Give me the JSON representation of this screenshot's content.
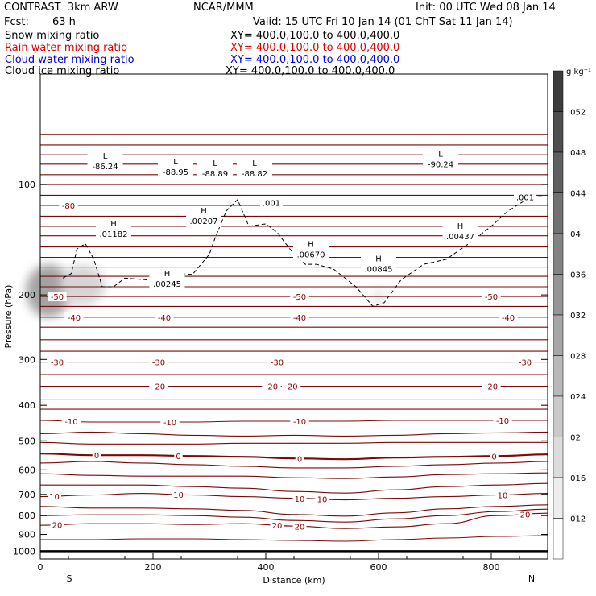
{
  "header": {
    "model": "CONTRAST  3km ARW",
    "org": "NCAR/MMM",
    "init": "Init: 00 UTC Wed 08 Jan 14",
    "fcst_label": "Fcst:",
    "fcst_value": "63 h",
    "valid": "Valid: 15 UTC Fri 10 Jan 14 (01 ChT Sat 11 Jan 14)"
  },
  "legend": [
    {
      "name": "Snow mixing ratio",
      "xy": "XY= 400.0,100.0 to 400.0,400.0",
      "color": "#000000"
    },
    {
      "name": "Rain water mixing ratio",
      "xy": "XY= 400.0,100.0 to 400.0,400.0",
      "color": "#e00000"
    },
    {
      "name": "Cloud water mixing ratio",
      "xy": "XY= 400.0,100.0 to 400.0,400.0",
      "color": "#0000e0"
    },
    {
      "name": "Cloud ice mixing ratio",
      "xy": "XY= 400.0,100.0 to 400.0,400.0",
      "color": "#000000"
    }
  ],
  "chart_data": {
    "type": "contour",
    "xlabel": "Distance (km)",
    "ylabel": "Pressure (hPa)",
    "xlim": [
      0,
      900
    ],
    "ylim": [
      1050,
      50
    ],
    "y_scale": "log",
    "x_ticks": [
      0,
      200,
      400,
      600,
      800
    ],
    "y_ticks": [
      100,
      200,
      300,
      400,
      500,
      600,
      700,
      800,
      900,
      1000
    ],
    "end_labels": {
      "left": "S",
      "right": "N"
    },
    "ground_level_hpa": 1005,
    "colorbar": {
      "units": "g kg⁻¹",
      "ticks": [
        ".052",
        ".048",
        ".044",
        ".04",
        ".036",
        ".032",
        ".028",
        ".024",
        ".02",
        ".016",
        ".012"
      ],
      "values": [
        0.052,
        0.048,
        0.044,
        0.04,
        0.036,
        0.032,
        0.028,
        0.024,
        0.02,
        0.016,
        0.012
      ]
    },
    "temperature_contours": [
      {
        "p": 1000,
        "value": null,
        "dp": [
          0,
          0,
          0,
          0,
          0,
          0,
          0,
          0,
          0,
          0,
          0
        ]
      },
      {
        "p": 930,
        "value": null,
        "dp": [
          0,
          0,
          1,
          1,
          0,
          -1,
          -2,
          0,
          2,
          4,
          5
        ]
      },
      {
        "p": 850,
        "value": 20,
        "labels": [
          {
            "x": 30,
            "text": "20"
          },
          {
            "x": 420,
            "text": "20"
          },
          {
            "x": 460,
            "text": "20"
          },
          {
            "x": 860,
            "text": "20"
          }
        ],
        "dp": [
          0,
          2,
          2,
          1,
          2,
          -1,
          -4,
          -2,
          2,
          12,
          15
        ]
      },
      {
        "p": 800,
        "value": null,
        "dp": [
          0,
          1,
          1,
          0,
          -2,
          -6,
          -8,
          -4,
          0,
          5,
          8
        ]
      },
      {
        "p": 755,
        "value": null,
        "dp": [
          0,
          -2,
          -2,
          -3,
          -5,
          -10,
          -12,
          -8,
          -3,
          0,
          2
        ]
      },
      {
        "p": 710,
        "value": 10,
        "labels": [
          {
            "x": 25,
            "text": "10"
          },
          {
            "x": 245,
            "text": "10"
          },
          {
            "x": 460,
            "text": "10"
          },
          {
            "x": 500,
            "text": "10"
          },
          {
            "x": 820,
            "text": "10"
          }
        ],
        "dp": [
          0,
          2,
          4,
          2,
          0,
          -2,
          -4,
          -2,
          0,
          2,
          4
        ]
      },
      {
        "p": 660,
        "value": null,
        "dp": [
          0,
          0,
          0,
          -2,
          -4,
          -8,
          -10,
          -6,
          -2,
          0,
          2
        ]
      },
      {
        "p": 615,
        "value": null,
        "dp": [
          0,
          -2,
          -3,
          -3,
          -3,
          -5,
          -6,
          -4,
          -1,
          0,
          1
        ]
      },
      {
        "p": 575,
        "value": null,
        "dp": [
          0,
          2,
          0,
          -2,
          -4,
          -6,
          -6,
          -4,
          -2,
          0,
          2
        ]
      },
      {
        "p": 542,
        "value": 0,
        "labels": [
          {
            "x": 100,
            "text": "0"
          },
          {
            "x": 245,
            "text": "0"
          },
          {
            "x": 460,
            "text": "0"
          },
          {
            "x": 805,
            "text": "0"
          }
        ],
        "dp": [
          0,
          -2,
          -2,
          -3,
          -4,
          -6,
          -7,
          -5,
          -4,
          -3,
          -1
        ]
      },
      {
        "p": 505,
        "value": null,
        "dp": [
          0,
          -2,
          -2,
          -2,
          -1,
          -1,
          -1,
          0,
          0,
          0,
          0
        ]
      },
      {
        "p": 478,
        "value": null,
        "dp": [
          0,
          2,
          0,
          -2,
          -3,
          -2,
          -3,
          -2,
          0,
          1,
          2
        ]
      },
      {
        "p": 440,
        "value": -10,
        "labels": [
          {
            "x": 55,
            "text": "-10"
          },
          {
            "x": 230,
            "text": "-10"
          },
          {
            "x": 460,
            "text": "-10"
          },
          {
            "x": 820,
            "text": "-10"
          }
        ],
        "dp": [
          0,
          -2,
          -2,
          -2,
          -1,
          -1,
          -1,
          0,
          0,
          0,
          0
        ]
      },
      {
        "p": 410,
        "value": null,
        "dp": [
          0,
          0,
          0,
          0,
          0,
          0,
          0,
          0,
          0,
          0,
          0
        ]
      },
      {
        "p": 385,
        "value": null,
        "dp": [
          0,
          0,
          0,
          0,
          0,
          0,
          0,
          0,
          0,
          0,
          0
        ]
      },
      {
        "p": 355,
        "value": -20,
        "labels": [
          {
            "x": 210,
            "text": "-20"
          },
          {
            "x": 410,
            "text": "-20"
          },
          {
            "x": 445,
            "text": "-20"
          },
          {
            "x": 800,
            "text": "-20"
          }
        ],
        "dp": [
          0,
          0,
          0,
          0,
          0,
          0,
          0,
          0,
          0,
          0,
          0
        ]
      },
      {
        "p": 330,
        "value": null,
        "dp": [
          0,
          0,
          0,
          0,
          0,
          0,
          0,
          0,
          0,
          0,
          0
        ]
      },
      {
        "p": 305,
        "value": -30,
        "labels": [
          {
            "x": 30,
            "text": "-30"
          },
          {
            "x": 210,
            "text": "-30"
          },
          {
            "x": 420,
            "text": "-30"
          },
          {
            "x": 860,
            "text": "-30"
          }
        ],
        "dp": [
          0,
          0,
          0,
          0,
          0,
          0,
          0,
          0,
          0,
          0,
          0
        ]
      },
      {
        "p": 285,
        "value": null,
        "dp": [
          0,
          0,
          0,
          0,
          0,
          0,
          0,
          0,
          0,
          0,
          0
        ]
      },
      {
        "p": 265,
        "value": null,
        "dp": [
          0,
          0,
          0,
          0,
          0,
          0,
          0,
          0,
          0,
          0,
          0
        ]
      },
      {
        "p": 245,
        "value": null,
        "dp": [
          0,
          0,
          0,
          0,
          0,
          0,
          0,
          0,
          0,
          0,
          0
        ]
      },
      {
        "p": 230,
        "value": -40,
        "labels": [
          {
            "x": 60,
            "text": "-40"
          },
          {
            "x": 220,
            "text": "-40"
          },
          {
            "x": 460,
            "text": "-40"
          },
          {
            "x": 830,
            "text": "-40"
          }
        ],
        "dp": [
          0,
          0,
          0,
          0,
          0,
          0,
          0,
          0,
          0,
          0,
          0
        ]
      },
      {
        "p": 215,
        "value": null,
        "dp": [
          0,
          0,
          0,
          0,
          0,
          0,
          0,
          0,
          0,
          0,
          0
        ]
      },
      {
        "p": 202,
        "value": -50,
        "labels": [
          {
            "x": 30,
            "text": "-50"
          },
          {
            "x": 460,
            "text": "-50"
          },
          {
            "x": 800,
            "text": "-50"
          }
        ],
        "dp": [
          0,
          0,
          0,
          0,
          0,
          0,
          0,
          0,
          0,
          0,
          0
        ]
      },
      {
        "p": 190,
        "value": null,
        "dp": [
          0,
          0,
          0,
          0,
          0,
          0,
          0,
          0,
          0,
          0,
          0
        ]
      },
      {
        "p": 178,
        "value": null,
        "dp": [
          0,
          0,
          0,
          0,
          0,
          0,
          0,
          0,
          0,
          0,
          0
        ]
      },
      {
        "p": 168,
        "value": null,
        "dp": [
          0,
          0,
          0,
          0,
          0,
          0,
          0,
          0,
          0,
          0,
          0
        ]
      },
      {
        "p": 158,
        "value": null,
        "dp": [
          0,
          0,
          0,
          0,
          0,
          0,
          0,
          0,
          0,
          0,
          0
        ]
      },
      {
        "p": 148,
        "value": null,
        "dp": [
          0,
          0,
          0,
          0,
          0,
          0,
          0,
          0,
          0,
          0,
          0
        ]
      },
      {
        "p": 138,
        "value": null,
        "dp": [
          0,
          0,
          0,
          0,
          0,
          0,
          0,
          0,
          0,
          0,
          0
        ]
      },
      {
        "p": 130,
        "value": null,
        "dp": [
          0,
          0,
          0,
          0,
          0,
          0,
          0,
          0,
          0,
          0,
          0
        ]
      },
      {
        "p": 122,
        "value": null,
        "dp": [
          0,
          0,
          0,
          0,
          0,
          0,
          0,
          0,
          0,
          0,
          0
        ]
      },
      {
        "p": 114,
        "value": -80,
        "labels": [
          {
            "x": 50,
            "text": "-80"
          }
        ],
        "dp": [
          0,
          0,
          0,
          0,
          0,
          0,
          0,
          0,
          0,
          0,
          0
        ]
      },
      {
        "p": 107,
        "value": null,
        "dp": [
          0,
          0,
          0,
          0,
          0,
          0,
          0,
          0,
          0,
          0,
          0
        ]
      },
      {
        "p": 100,
        "value": null,
        "dp": [
          0,
          0,
          0,
          0,
          0,
          0,
          0,
          0,
          0,
          0,
          0
        ]
      },
      {
        "p": 94,
        "value": null,
        "dp": [
          0,
          0,
          0,
          0,
          0,
          0,
          0,
          0,
          0,
          0,
          0
        ]
      },
      {
        "p": 88,
        "value": null,
        "dp": [
          0,
          0,
          0,
          0,
          0,
          0,
          0,
          0,
          0,
          0,
          0
        ]
      },
      {
        "p": 83,
        "value": null,
        "dp": [
          0,
          0,
          0,
          0,
          0,
          0,
          0,
          0,
          0,
          0,
          0
        ]
      },
      {
        "p": 78,
        "value": null,
        "dp": [
          0,
          0,
          0,
          0,
          0,
          0,
          0,
          0,
          0,
          0,
          0
        ]
      },
      {
        "p": 73,
        "value": null,
        "dp": [
          0,
          0,
          0,
          0,
          0,
          0,
          0,
          0,
          0,
          0,
          0
        ]
      }
    ],
    "extrema": [
      {
        "kind": "L",
        "x": 115,
        "p": 85,
        "value": "-86.24"
      },
      {
        "kind": "L",
        "x": 240,
        "p": 88,
        "value": "-88.95"
      },
      {
        "kind": "L",
        "x": 310,
        "p": 89,
        "value": "-88.89"
      },
      {
        "kind": "L",
        "x": 380,
        "p": 89,
        "value": "-88.82"
      },
      {
        "kind": "L",
        "x": 710,
        "p": 84,
        "value": "-90.24"
      },
      {
        "kind": "H",
        "x": 130,
        "p": 130,
        "value": ".01182"
      },
      {
        "kind": "H",
        "x": 290,
        "p": 120,
        "value": ".00207"
      },
      {
        "kind": "H",
        "x": 225,
        "p": 178,
        "value": ".00245"
      },
      {
        "kind": "H",
        "x": 480,
        "p": 148,
        "value": ".00670"
      },
      {
        "kind": "H",
        "x": 600,
        "p": 162,
        "value": ".00845"
      },
      {
        "kind": "H",
        "x": 745,
        "p": 132,
        "value": ".00437"
      }
    ],
    "ice_contour_labels": [
      {
        "x": 410,
        "p": 112,
        "text": ".001"
      },
      {
        "x": 860,
        "p": 108,
        "text": ".001"
      }
    ],
    "ice_contour_path": [
      [
        40,
        180
      ],
      [
        55,
        175
      ],
      [
        65,
        150
      ],
      [
        80,
        145
      ],
      [
        95,
        160
      ],
      [
        110,
        190
      ],
      [
        130,
        190
      ],
      [
        150,
        180
      ],
      [
        190,
        182
      ],
      [
        215,
        176
      ],
      [
        235,
        190
      ],
      [
        250,
        175
      ],
      [
        270,
        176
      ],
      [
        300,
        155
      ],
      [
        310,
        140
      ],
      [
        330,
        118
      ],
      [
        350,
        110
      ],
      [
        370,
        130
      ],
      [
        400,
        128
      ],
      [
        420,
        135
      ],
      [
        450,
        155
      ],
      [
        470,
        165
      ],
      [
        490,
        165
      ],
      [
        520,
        170
      ],
      [
        560,
        190
      ],
      [
        590,
        215
      ],
      [
        610,
        210
      ],
      [
        640,
        182
      ],
      [
        680,
        165
      ],
      [
        720,
        160
      ],
      [
        760,
        145
      ],
      [
        800,
        130
      ],
      [
        830,
        118
      ],
      [
        870,
        108
      ],
      [
        890,
        108
      ]
    ],
    "shading_blobs": [
      {
        "x": 15,
        "p": 195,
        "rx_km": 40,
        "rp_hpa": 35,
        "value": 0.03
      },
      {
        "x": 75,
        "p": 188,
        "rx_km": 40,
        "rp_hpa": 25,
        "value": 0.018
      },
      {
        "x": 600,
        "p": 203,
        "rx_km": 10,
        "rp_hpa": 12,
        "value": 0.014
      }
    ]
  }
}
